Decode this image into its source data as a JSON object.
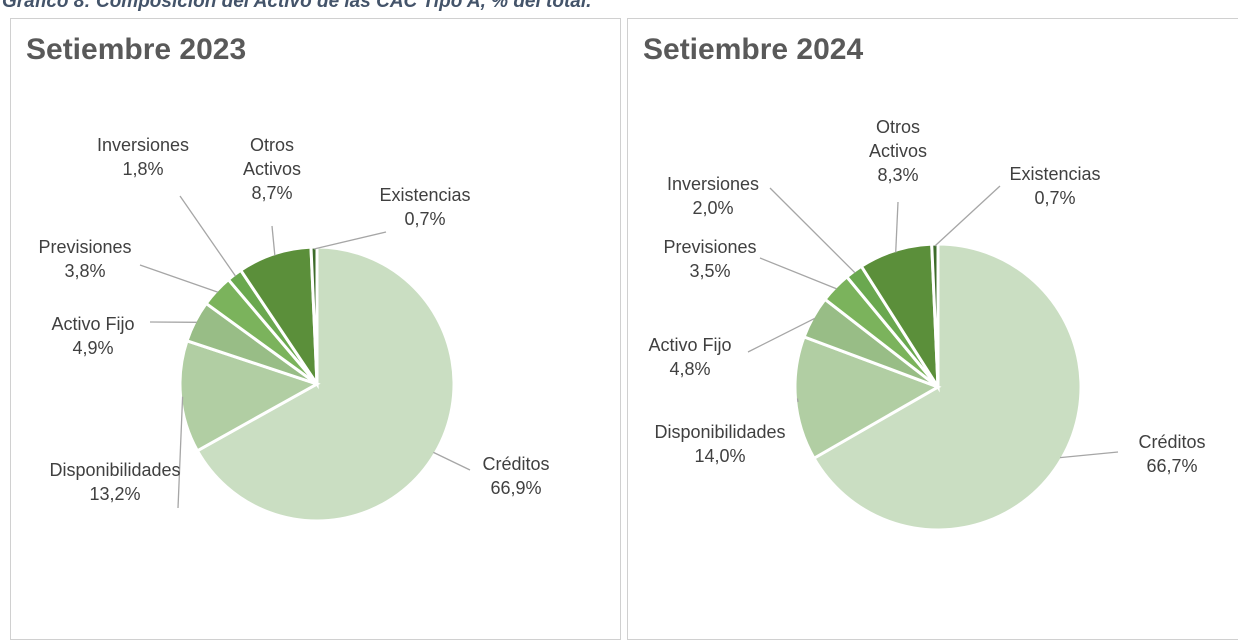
{
  "figure_title": "Gráfico 8: Composición del Activo de las CAC Tipo A, % del total.",
  "chart_data": [
    {
      "type": "pie",
      "title": "Setiembre 2023",
      "categories": [
        "Créditos",
        "Disponibilidades",
        "Activo Fijo",
        "Previsiones",
        "Inversiones",
        "Otros Activos",
        "Existencias"
      ],
      "values": [
        66.9,
        13.2,
        4.9,
        3.8,
        1.8,
        8.7,
        0.7
      ],
      "value_labels": [
        "66,9%",
        "13,2%",
        "4,9%",
        "3,8%",
        "1,8%",
        "8,7%",
        "0,7%"
      ],
      "colors": [
        "#cadec2",
        "#b1cea3",
        "#98bd86",
        "#7bb35c",
        "#6aa84f",
        "#5b8f3a",
        "#3e6c2b"
      ]
    },
    {
      "type": "pie",
      "title": "Setiembre 2024",
      "categories": [
        "Créditos",
        "Disponibilidades",
        "Activo Fijo",
        "Previsiones",
        "Inversiones",
        "Otros Activos",
        "Existencias"
      ],
      "values": [
        66.7,
        14.0,
        4.8,
        3.5,
        2.0,
        8.3,
        0.7
      ],
      "value_labels": [
        "66,7%",
        "14,0%",
        "4,8%",
        "3,5%",
        "2,0%",
        "8,3%",
        "0,7%"
      ],
      "colors": [
        "#cadec2",
        "#b1cea3",
        "#98bd86",
        "#7bb35c",
        "#6aa84f",
        "#5b8f3a",
        "#3e6c2b"
      ]
    }
  ]
}
